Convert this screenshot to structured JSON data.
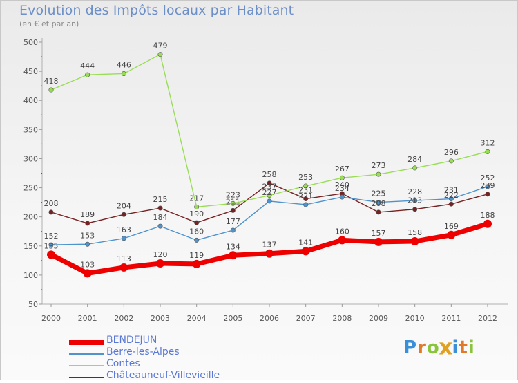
{
  "header": {
    "title": "Evolution des Impôts locaux par Habitant",
    "subtitle": "(en € et par an)"
  },
  "logo": {
    "letters": [
      "P",
      "r",
      "o",
      "x",
      "i",
      "t",
      "i"
    ],
    "colors": [
      "#3a8fd8",
      "#e07a2a",
      "#8ac43a",
      "#e0a020",
      "#3a8fd8",
      "#e07a2a",
      "#8ac43a"
    ]
  },
  "chart_data": {
    "type": "line",
    "title": "Evolution des Impôts locaux par Habitant",
    "subtitle": "(en € et par an)",
    "xlabel": "",
    "ylabel": "",
    "x": [
      "2000",
      "2001",
      "2002",
      "2003",
      "2004",
      "2005",
      "2006",
      "2007",
      "2008",
      "2009",
      "2010",
      "2011",
      "2012"
    ],
    "ylim": [
      50,
      500
    ],
    "yticks": [
      50,
      100,
      150,
      200,
      250,
      300,
      350,
      400,
      450,
      500
    ],
    "grid": false,
    "legend": "bottom-left",
    "series": [
      {
        "name": "BENDEJUN",
        "color": "#ee0000",
        "values": [
          135,
          103,
          113,
          120,
          119,
          134,
          137,
          141,
          160,
          157,
          158,
          169,
          188
        ]
      },
      {
        "name": "Berre-les-Alpes",
        "color": "#4f93cc",
        "values": [
          152,
          153,
          163,
          184,
          160,
          177,
          227,
          221,
          234,
          225,
          228,
          231,
          252
        ]
      },
      {
        "name": "Contes",
        "color": "#99dd55",
        "values": [
          418,
          444,
          446,
          479,
          217,
          223,
          237,
          253,
          267,
          273,
          284,
          296,
          312
        ]
      },
      {
        "name": "Châteauneuf-Villevieille",
        "color": "#772222",
        "values": [
          208,
          189,
          204,
          215,
          190,
          211,
          258,
          231,
          240,
          208,
          213,
          222,
          239
        ]
      }
    ]
  }
}
